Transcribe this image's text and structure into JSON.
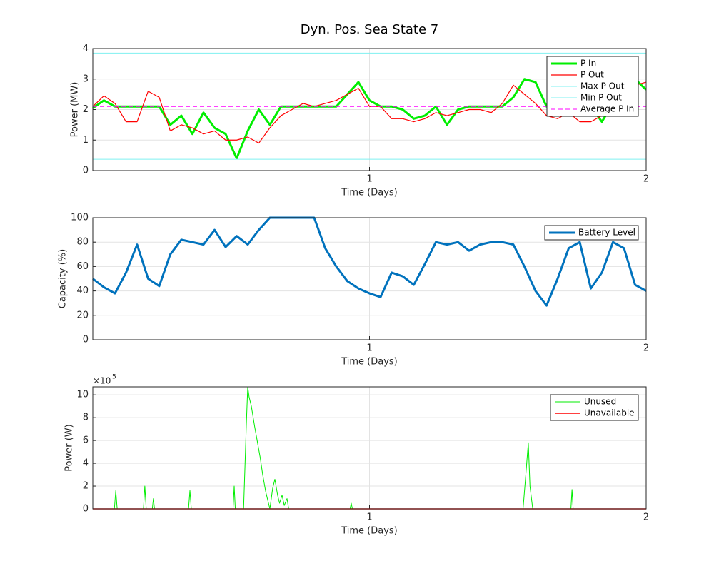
{
  "chart_data": [
    {
      "type": "line",
      "title": "Dyn. Pos. Sea State 7",
      "xlabel": "Time (Days)",
      "ylabel": "Power (MW)",
      "x": [
        0,
        0.04,
        0.08,
        0.12,
        0.16,
        0.2,
        0.24,
        0.28,
        0.32,
        0.36,
        0.4,
        0.44,
        0.48,
        0.52,
        0.56,
        0.6,
        0.64,
        0.68,
        0.72,
        0.76,
        0.8,
        0.84,
        0.88,
        0.92,
        0.96,
        1,
        1.04,
        1.08,
        1.12,
        1.16,
        1.2,
        1.24,
        1.28,
        1.32,
        1.36,
        1.4,
        1.44,
        1.48,
        1.52,
        1.56,
        1.6,
        1.64,
        1.68,
        1.72,
        1.76,
        1.8,
        1.84,
        1.88,
        1.92,
        1.96,
        2
      ],
      "series": [
        {
          "name": "P In",
          "color": "#00ee00",
          "linewidth": 3,
          "values": [
            2.05,
            2.3,
            2.1,
            2.1,
            2.1,
            2.1,
            2.1,
            1.5,
            1.8,
            1.2,
            1.9,
            1.4,
            1.2,
            0.4,
            1.3,
            2.0,
            1.5,
            2.1,
            2.1,
            2.1,
            2.1,
            2.1,
            2.1,
            2.5,
            2.9,
            2.3,
            2.1,
            2.1,
            2.0,
            1.7,
            1.8,
            2.1,
            1.5,
            2.0,
            2.1,
            2.1,
            2.1,
            2.1,
            2.4,
            3.0,
            2.9,
            2.1,
            2.1,
            2.0,
            1.9,
            2.1,
            1.6,
            2.2,
            2.6,
            3.0,
            2.65
          ]
        },
        {
          "name": "P Out",
          "color": "#ff0000",
          "linewidth": 1.2,
          "values": [
            2.1,
            2.45,
            2.2,
            1.6,
            1.6,
            2.6,
            2.4,
            1.3,
            1.5,
            1.4,
            1.2,
            1.3,
            1.0,
            1.0,
            1.1,
            0.9,
            1.4,
            1.8,
            2.0,
            2.2,
            2.1,
            2.2,
            2.3,
            2.5,
            2.7,
            2.1,
            2.1,
            1.7,
            1.7,
            1.6,
            1.7,
            1.9,
            1.8,
            1.9,
            2.0,
            2.0,
            1.9,
            2.2,
            2.8,
            2.5,
            2.2,
            1.8,
            1.7,
            1.9,
            1.6,
            1.6,
            1.8,
            2.0,
            2.5,
            2.8,
            2.9
          ]
        },
        {
          "name": "Max P Out",
          "color": "#7ff0f0",
          "linewidth": 1,
          "values": [
            3.85,
            3.85,
            3.85,
            3.85,
            3.85,
            3.85,
            3.85,
            3.85,
            3.85,
            3.85,
            3.85,
            3.85,
            3.85,
            3.85,
            3.85,
            3.85,
            3.85,
            3.85,
            3.85,
            3.85,
            3.85,
            3.85,
            3.85,
            3.85,
            3.85,
            3.85,
            3.85,
            3.85,
            3.85,
            3.85,
            3.85,
            3.85,
            3.85,
            3.85,
            3.85,
            3.85,
            3.85,
            3.85,
            3.85,
            3.85,
            3.85,
            3.85,
            3.85,
            3.85,
            3.85,
            3.85,
            3.85,
            3.85,
            3.85,
            3.85,
            3.85
          ]
        },
        {
          "name": "Min P Out",
          "color": "#7ff0f0",
          "linewidth": 1,
          "values": [
            0.37,
            0.37,
            0.37,
            0.37,
            0.37,
            0.37,
            0.37,
            0.37,
            0.37,
            0.37,
            0.37,
            0.37,
            0.37,
            0.37,
            0.37,
            0.37,
            0.37,
            0.37,
            0.37,
            0.37,
            0.37,
            0.37,
            0.37,
            0.37,
            0.37,
            0.37,
            0.37,
            0.37,
            0.37,
            0.37,
            0.37,
            0.37,
            0.37,
            0.37,
            0.37,
            0.37,
            0.37,
            0.37,
            0.37,
            0.37,
            0.37,
            0.37,
            0.37,
            0.37,
            0.37,
            0.37,
            0.37,
            0.37,
            0.37,
            0.37,
            0.37
          ]
        },
        {
          "name": "Average P In",
          "color": "#ff00ff",
          "linewidth": 1,
          "linestyle": "dashed",
          "values": [
            2.1,
            2.1,
            2.1,
            2.1,
            2.1,
            2.1,
            2.1,
            2.1,
            2.1,
            2.1,
            2.1,
            2.1,
            2.1,
            2.1,
            2.1,
            2.1,
            2.1,
            2.1,
            2.1,
            2.1,
            2.1,
            2.1,
            2.1,
            2.1,
            2.1,
            2.1,
            2.1,
            2.1,
            2.1,
            2.1,
            2.1,
            2.1,
            2.1,
            2.1,
            2.1,
            2.1,
            2.1,
            2.1,
            2.1,
            2.1,
            2.1,
            2.1,
            2.1,
            2.1,
            2.1,
            2.1,
            2.1,
            2.1,
            2.1,
            2.1,
            2.1
          ]
        }
      ],
      "xlim": [
        0,
        2
      ],
      "xticks": [
        1,
        2
      ],
      "ylim": [
        0,
        4
      ],
      "yticks": [
        0,
        1,
        2,
        3,
        4
      ],
      "grid": true,
      "legend": "northeast"
    },
    {
      "type": "line",
      "xlabel": "Time (Days)",
      "ylabel": "Capacity (%)",
      "x": [
        0,
        0.04,
        0.08,
        0.12,
        0.16,
        0.2,
        0.24,
        0.28,
        0.32,
        0.36,
        0.4,
        0.44,
        0.48,
        0.52,
        0.56,
        0.6,
        0.64,
        0.68,
        0.72,
        0.76,
        0.8,
        0.84,
        0.88,
        0.92,
        0.96,
        1,
        1.04,
        1.08,
        1.12,
        1.16,
        1.2,
        1.24,
        1.28,
        1.32,
        1.36,
        1.4,
        1.44,
        1.48,
        1.52,
        1.56,
        1.6,
        1.64,
        1.68,
        1.72,
        1.76,
        1.8,
        1.84,
        1.88,
        1.92,
        1.96,
        2
      ],
      "series": [
        {
          "name": "Battery Level",
          "color": "#0072bd",
          "linewidth": 3,
          "values": [
            50,
            43,
            38,
            55,
            78,
            50,
            44,
            70,
            82,
            80,
            78,
            90,
            76,
            85,
            78,
            90,
            100,
            100,
            100,
            100,
            100,
            75,
            60,
            48,
            42,
            38,
            35,
            55,
            52,
            45,
            62,
            80,
            78,
            80,
            73,
            78,
            80,
            80,
            78,
            60,
            40,
            28,
            50,
            75,
            80,
            42,
            55,
            80,
            75,
            45,
            40
          ]
        }
      ],
      "xlim": [
        0,
        2
      ],
      "xticks": [
        1,
        2
      ],
      "ylim": [
        0,
        100
      ],
      "yticks": [
        0,
        20,
        40,
        60,
        80,
        100
      ],
      "grid": true,
      "legend": "northeast"
    },
    {
      "type": "line",
      "xlabel": "Time (Days)",
      "ylabel": "Power (W)",
      "y_exponent_base": "×10",
      "y_exponent": "5",
      "x": [
        0,
        0.078,
        0.083,
        0.088,
        0.183,
        0.188,
        0.193,
        0.215,
        0.219,
        0.223,
        0.346,
        0.351,
        0.356,
        0.507,
        0.511,
        0.515,
        0.545,
        0.555,
        0.56,
        0.565,
        0.573,
        0.585,
        0.594,
        0.605,
        0.614,
        0.625,
        0.64,
        0.65,
        0.658,
        0.668,
        0.675,
        0.684,
        0.692,
        0.702,
        0.708,
        0.93,
        0.934,
        0.938,
        1.555,
        1.565,
        1.574,
        1.58,
        1.59,
        1.728,
        1.732,
        1.736,
        2
      ],
      "series": [
        {
          "name": "Unused",
          "color": "#00ee00",
          "linewidth": 1,
          "values": [
            0,
            0,
            1.6,
            0,
            0,
            2.0,
            0,
            0,
            0.9,
            0,
            0,
            1.6,
            0,
            0,
            2.0,
            0,
            0,
            7.5,
            10.7,
            9.8,
            9.0,
            7.2,
            6.0,
            4.5,
            3.0,
            1.5,
            0,
            1.8,
            2.6,
            1.2,
            0.5,
            1.2,
            0.3,
            0.9,
            0,
            0,
            0.5,
            0,
            0,
            3.0,
            5.8,
            2.0,
            0,
            0,
            1.7,
            0,
            0
          ]
        },
        {
          "name": "Unavailable",
          "color": "#ff0000",
          "linewidth": 1.5,
          "values": [
            0,
            0,
            0,
            0,
            0,
            0,
            0,
            0,
            0,
            0,
            0,
            0,
            0,
            0,
            0,
            0,
            0,
            0,
            0,
            0,
            0,
            0,
            0,
            0,
            0,
            0,
            0,
            0,
            0,
            0,
            0,
            0,
            0,
            0,
            0,
            0,
            0,
            0,
            0,
            0,
            0,
            0,
            0,
            0,
            0,
            0,
            0
          ]
        }
      ],
      "xlim": [
        0,
        2
      ],
      "xticks": [
        1,
        2
      ],
      "ylim": [
        0,
        10.7
      ],
      "yticks": [
        0,
        2,
        4,
        6,
        8,
        10
      ],
      "grid": true,
      "legend": "northeast"
    }
  ]
}
